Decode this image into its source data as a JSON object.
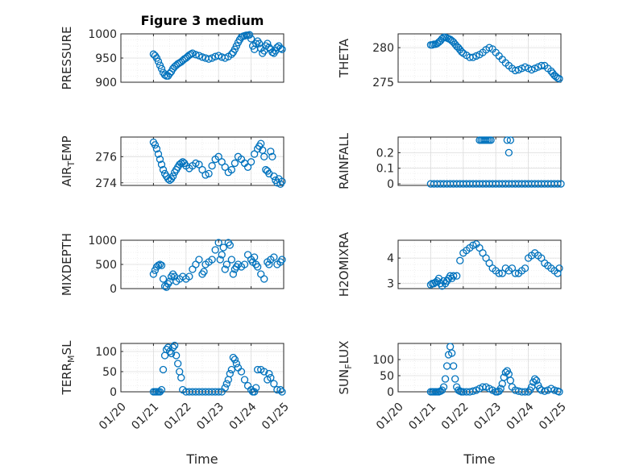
{
  "figure_title": "Figure 3 medium",
  "marker_color": "#0072BD",
  "xlabel": "Time",
  "x_tick_labels": [
    "01/20",
    "01/21",
    "01/22",
    "01/23",
    "01/24",
    "01/25"
  ],
  "chart_data": [
    {
      "type": "scatter",
      "title": "Figure 3 medium",
      "ylabel": "PRESSURE",
      "xlim": [
        0,
        5
      ],
      "ylim": [
        900,
        1000
      ],
      "yticks": [
        900,
        950,
        1000
      ],
      "grid": true,
      "minor_grid": true,
      "x": [
        1.0,
        1.05,
        1.1,
        1.15,
        1.2,
        1.25,
        1.3,
        1.35,
        1.4,
        1.45,
        1.5,
        1.55,
        1.6,
        1.65,
        1.7,
        1.75,
        1.8,
        1.85,
        1.9,
        1.95,
        2.0,
        2.05,
        2.1,
        2.15,
        2.2,
        2.3,
        2.4,
        2.5,
        2.6,
        2.7,
        2.8,
        2.9,
        3.0,
        3.1,
        3.2,
        3.3,
        3.4,
        3.45,
        3.5,
        3.55,
        3.6,
        3.65,
        3.7,
        3.75,
        3.8,
        3.85,
        3.9,
        3.95,
        4.0,
        4.05,
        4.1,
        4.15,
        4.2,
        4.25,
        4.3,
        4.35,
        4.4,
        4.45,
        4.5,
        4.55,
        4.6,
        4.65,
        4.7,
        4.75,
        4.8,
        4.85,
        4.9,
        4.95
      ],
      "y": [
        958,
        955,
        950,
        943,
        935,
        928,
        920,
        915,
        913,
        913,
        918,
        922,
        928,
        932,
        935,
        938,
        940,
        942,
        945,
        948,
        950,
        953,
        956,
        958,
        960,
        957,
        955,
        952,
        950,
        948,
        950,
        953,
        955,
        952,
        950,
        953,
        958,
        962,
        968,
        975,
        982,
        988,
        993,
        995,
        996,
        997,
        997,
        998,
        990,
        975,
        968,
        980,
        985,
        980,
        970,
        960,
        965,
        975,
        980,
        972,
        968,
        962,
        960,
        965,
        972,
        975,
        970,
        968
      ],
      "ylim_note": ""
    },
    {
      "type": "scatter",
      "ylabel": "THETA",
      "xlim": [
        0,
        5
      ],
      "ylim": [
        275,
        282
      ],
      "yticks": [
        275,
        280
      ],
      "grid": true,
      "minor_grid": true,
      "x": [
        1.0,
        1.05,
        1.1,
        1.15,
        1.2,
        1.25,
        1.3,
        1.35,
        1.4,
        1.45,
        1.5,
        1.55,
        1.6,
        1.65,
        1.7,
        1.75,
        1.8,
        1.85,
        1.9,
        1.95,
        2.0,
        2.1,
        2.2,
        2.3,
        2.4,
        2.5,
        2.6,
        2.7,
        2.8,
        2.9,
        3.0,
        3.1,
        3.2,
        3.3,
        3.4,
        3.5,
        3.6,
        3.7,
        3.8,
        3.9,
        4.0,
        4.1,
        4.2,
        4.3,
        4.4,
        4.5,
        4.6,
        4.7,
        4.75,
        4.8,
        4.85,
        4.9,
        4.95
      ],
      "y": [
        280.4,
        280.4,
        280.5,
        280.5,
        280.6,
        280.8,
        281.0,
        281.3,
        281.5,
        281.5,
        281.4,
        281.3,
        281.2,
        281.0,
        280.8,
        280.5,
        280.2,
        280.0,
        279.7,
        279.4,
        279.2,
        278.9,
        278.6,
        278.6,
        278.8,
        279.0,
        279.3,
        279.7,
        280.0,
        279.8,
        279.3,
        278.8,
        278.3,
        277.8,
        277.4,
        277.0,
        276.7,
        276.8,
        277.0,
        277.2,
        277.0,
        276.8,
        277.0,
        277.2,
        277.4,
        277.4,
        277.0,
        276.6,
        276.3,
        276.0,
        275.8,
        275.6,
        275.5
      ]
    },
    {
      "type": "scatter",
      "ylabel": "AIR_TEMP",
      "xlim": [
        0,
        5
      ],
      "ylim": [
        273.8,
        277.5
      ],
      "yticks": [
        274,
        276
      ],
      "grid": true,
      "minor_grid": true,
      "x": [
        1.0,
        1.05,
        1.1,
        1.15,
        1.2,
        1.25,
        1.3,
        1.35,
        1.4,
        1.45,
        1.5,
        1.55,
        1.6,
        1.65,
        1.7,
        1.75,
        1.8,
        1.85,
        1.9,
        1.95,
        2.0,
        2.1,
        2.2,
        2.3,
        2.4,
        2.5,
        2.6,
        2.7,
        2.8,
        2.9,
        3.0,
        3.1,
        3.2,
        3.3,
        3.4,
        3.5,
        3.6,
        3.7,
        3.8,
        3.9,
        4.0,
        4.1,
        4.2,
        4.25,
        4.3,
        4.35,
        4.4,
        4.45,
        4.5,
        4.55,
        4.6,
        4.65,
        4.7,
        4.75,
        4.8,
        4.85,
        4.9,
        4.95
      ],
      "y": [
        277.1,
        276.9,
        276.6,
        276.2,
        275.8,
        275.4,
        275.0,
        274.7,
        274.5,
        274.3,
        274.2,
        274.3,
        274.5,
        274.8,
        275.0,
        275.2,
        275.4,
        275.5,
        275.6,
        275.5,
        275.3,
        275.1,
        275.3,
        275.5,
        275.4,
        275.0,
        274.6,
        274.7,
        275.3,
        275.8,
        276.0,
        275.6,
        275.2,
        274.8,
        275.0,
        275.5,
        276.0,
        275.8,
        275.5,
        275.2,
        275.6,
        276.2,
        276.6,
        276.8,
        277.0,
        276.5,
        276.0,
        275.0,
        274.9,
        274.7,
        276.4,
        276.0,
        274.5,
        274.2,
        274.0,
        274.3,
        273.9,
        274.1
      ]
    },
    {
      "type": "scatter",
      "ylabel": "RAINFALL",
      "xlim": [
        0,
        5
      ],
      "ylim": [
        -0.01,
        0.3
      ],
      "yticks": [
        0,
        0.1,
        0.2
      ],
      "grid": true,
      "minor_grid": true,
      "x": [
        1.0,
        1.1,
        1.2,
        1.3,
        1.4,
        1.5,
        1.6,
        1.7,
        1.8,
        1.9,
        2.0,
        2.1,
        2.2,
        2.3,
        2.4,
        2.5,
        2.6,
        2.7,
        2.8,
        2.9,
        3.0,
        3.1,
        3.2,
        3.3,
        3.4,
        3.5,
        3.6,
        3.7,
        3.8,
        3.9,
        4.0,
        4.1,
        4.2,
        4.3,
        4.4,
        4.5,
        4.6,
        4.7,
        4.8,
        4.9,
        5.0,
        2.5,
        2.55,
        2.6,
        2.65,
        2.7,
        2.75,
        2.8,
        2.85,
        3.35,
        3.45,
        3.4
      ],
      "y": [
        0,
        0,
        0,
        0,
        0,
        0,
        0,
        0,
        0,
        0,
        0,
        0,
        0,
        0,
        0,
        0,
        0,
        0,
        0,
        0,
        0,
        0,
        0,
        0,
        0,
        0,
        0,
        0,
        0,
        0,
        0,
        0,
        0,
        0,
        0,
        0,
        0,
        0,
        0,
        0,
        0,
        0.28,
        0.28,
        0.28,
        0.28,
        0.28,
        0.28,
        0.28,
        0.28,
        0.28,
        0.28,
        0.2
      ]
    },
    {
      "type": "scatter",
      "ylabel": "MIXDEPTH",
      "xlim": [
        0,
        5
      ],
      "ylim": [
        0,
        1000
      ],
      "yticks": [
        0,
        500,
        1000
      ],
      "grid": true,
      "minor_grid": true,
      "x": [
        1.0,
        1.05,
        1.1,
        1.15,
        1.2,
        1.25,
        1.3,
        1.35,
        1.4,
        1.45,
        1.5,
        1.55,
        1.6,
        1.65,
        1.7,
        1.8,
        1.9,
        2.0,
        2.1,
        2.2,
        2.3,
        2.4,
        2.5,
        2.55,
        2.6,
        2.7,
        2.8,
        2.9,
        3.0,
        3.05,
        3.1,
        3.15,
        3.2,
        3.25,
        3.3,
        3.35,
        3.4,
        3.45,
        3.5,
        3.55,
        3.6,
        3.7,
        3.8,
        3.9,
        4.0,
        4.05,
        4.1,
        4.15,
        4.2,
        4.3,
        4.4,
        4.5,
        4.55,
        4.6,
        4.7,
        4.8,
        4.9,
        4.95
      ],
      "y": [
        300,
        380,
        450,
        480,
        500,
        480,
        200,
        50,
        30,
        100,
        150,
        250,
        300,
        250,
        150,
        200,
        250,
        200,
        250,
        400,
        500,
        600,
        300,
        350,
        500,
        550,
        600,
        800,
        950,
        600,
        700,
        850,
        400,
        500,
        950,
        900,
        600,
        300,
        400,
        450,
        500,
        450,
        500,
        700,
        600,
        550,
        650,
        500,
        450,
        300,
        200,
        550,
        500,
        600,
        650,
        500,
        550,
        600
      ]
    },
    {
      "type": "scatter",
      "ylabel": "H2OMIXRA",
      "xlim": [
        0,
        5
      ],
      "ylim": [
        2.8,
        4.7
      ],
      "yticks": [
        3,
        4
      ],
      "grid": true,
      "minor_grid": true,
      "x": [
        1.0,
        1.05,
        1.1,
        1.15,
        1.2,
        1.25,
        1.3,
        1.35,
        1.4,
        1.45,
        1.5,
        1.55,
        1.6,
        1.65,
        1.7,
        1.8,
        1.9,
        2.0,
        2.1,
        2.2,
        2.3,
        2.4,
        2.5,
        2.6,
        2.7,
        2.8,
        2.9,
        3.0,
        3.1,
        3.2,
        3.3,
        3.4,
        3.5,
        3.6,
        3.7,
        3.8,
        3.9,
        4.0,
        4.1,
        4.2,
        4.3,
        4.4,
        4.5,
        4.6,
        4.7,
        4.8,
        4.9,
        4.95
      ],
      "y": [
        2.95,
        3.0,
        3.0,
        3.05,
        3.1,
        3.2,
        3.0,
        2.9,
        3.1,
        3.0,
        3.1,
        3.2,
        3.3,
        3.2,
        3.3,
        3.3,
        3.9,
        4.2,
        4.3,
        4.4,
        4.5,
        4.55,
        4.4,
        4.2,
        4.0,
        3.8,
        3.6,
        3.5,
        3.4,
        3.4,
        3.6,
        3.5,
        3.6,
        3.4,
        3.4,
        3.5,
        3.6,
        4.0,
        4.1,
        4.2,
        4.1,
        4.0,
        3.8,
        3.7,
        3.6,
        3.5,
        3.4,
        3.6
      ]
    },
    {
      "type": "scatter",
      "ylabel": "TERR_MSL",
      "xlim": [
        0,
        5
      ],
      "ylim": [
        0,
        120
      ],
      "yticks": [
        0,
        50,
        100
      ],
      "grid": true,
      "minor_grid": true,
      "x": [
        1.0,
        1.05,
        1.1,
        1.15,
        1.2,
        1.25,
        1.3,
        1.35,
        1.4,
        1.45,
        1.5,
        1.55,
        1.6,
        1.65,
        1.7,
        1.75,
        1.8,
        1.85,
        1.9,
        2.0,
        2.1,
        2.2,
        2.3,
        2.4,
        2.5,
        2.6,
        2.7,
        2.8,
        2.9,
        3.0,
        3.1,
        3.2,
        3.25,
        3.3,
        3.35,
        3.4,
        3.45,
        3.5,
        3.55,
        3.6,
        3.7,
        3.8,
        3.9,
        4.0,
        4.05,
        4.1,
        4.15,
        4.2,
        4.3,
        4.4,
        4.5,
        4.55,
        4.6,
        4.7,
        4.8,
        4.9,
        4.95
      ],
      "y": [
        0,
        0,
        0,
        0,
        0,
        5,
        55,
        90,
        105,
        110,
        100,
        95,
        110,
        115,
        90,
        70,
        50,
        35,
        5,
        0,
        0,
        0,
        0,
        0,
        0,
        0,
        0,
        0,
        0,
        0,
        0,
        10,
        20,
        30,
        45,
        55,
        85,
        80,
        70,
        60,
        50,
        30,
        15,
        5,
        0,
        0,
        10,
        55,
        55,
        50,
        30,
        45,
        35,
        20,
        5,
        5,
        0
      ]
    },
    {
      "type": "scatter",
      "ylabel": "SUN_FLUX",
      "xlim": [
        0,
        5
      ],
      "ylim": [
        0,
        150
      ],
      "yticks": [
        0,
        50,
        100
      ],
      "grid": true,
      "minor_grid": true,
      "x": [
        1.0,
        1.05,
        1.1,
        1.15,
        1.2,
        1.25,
        1.3,
        1.35,
        1.4,
        1.45,
        1.5,
        1.55,
        1.6,
        1.65,
        1.7,
        1.75,
        1.8,
        1.85,
        1.9,
        1.95,
        2.0,
        2.1,
        2.2,
        2.3,
        2.4,
        2.5,
        2.6,
        2.7,
        2.8,
        2.9,
        3.0,
        3.05,
        3.1,
        3.15,
        3.2,
        3.25,
        3.3,
        3.35,
        3.4,
        3.45,
        3.5,
        3.6,
        3.7,
        3.8,
        3.9,
        4.0,
        4.05,
        4.1,
        4.15,
        4.2,
        4.25,
        4.3,
        4.35,
        4.4,
        4.5,
        4.6,
        4.7,
        4.8,
        4.9,
        4.95
      ],
      "y": [
        0,
        0,
        0,
        0,
        0,
        0,
        2,
        5,
        15,
        40,
        80,
        115,
        140,
        120,
        80,
        40,
        15,
        5,
        2,
        0,
        0,
        0,
        0,
        2,
        5,
        10,
        15,
        15,
        10,
        5,
        0,
        0,
        2,
        10,
        25,
        45,
        60,
        65,
        55,
        35,
        15,
        5,
        2,
        0,
        0,
        0,
        5,
        15,
        30,
        40,
        35,
        20,
        10,
        5,
        2,
        5,
        10,
        5,
        2,
        0
      ]
    }
  ]
}
